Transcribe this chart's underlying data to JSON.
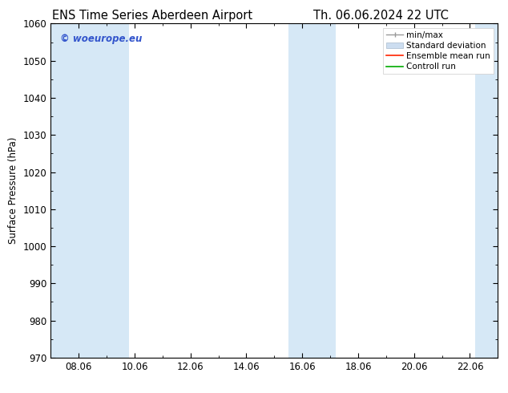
{
  "title_left": "ENS Time Series Aberdeen Airport",
  "title_right": "Th. 06.06.2024 22 UTC",
  "ylabel": "Surface Pressure (hPa)",
  "ylim": [
    970,
    1060
  ],
  "yticks": [
    970,
    980,
    990,
    1000,
    1010,
    1020,
    1030,
    1040,
    1050,
    1060
  ],
  "xtick_labels": [
    "08.06",
    "10.06",
    "12.06",
    "14.06",
    "16.06",
    "18.06",
    "20.06",
    "22.06"
  ],
  "xtick_positions": [
    1,
    3,
    5,
    7,
    9,
    11,
    13,
    15
  ],
  "xlim": [
    0,
    16
  ],
  "band1_x0": 0,
  "band1_x1": 2.8,
  "band2_x0": 8.5,
  "band2_x1": 10.2,
  "band3_x0": 15.2,
  "band3_x1": 16.0,
  "band_color": "#d6e8f6",
  "watermark_text": "© woeurope.eu",
  "watermark_color": "#3355cc",
  "background_color": "#ffffff",
  "plot_bg_color": "#ffffff",
  "font_size_title": 10.5,
  "font_size_axis": 8.5,
  "font_size_legend": 7.5,
  "font_size_watermark": 8.5
}
